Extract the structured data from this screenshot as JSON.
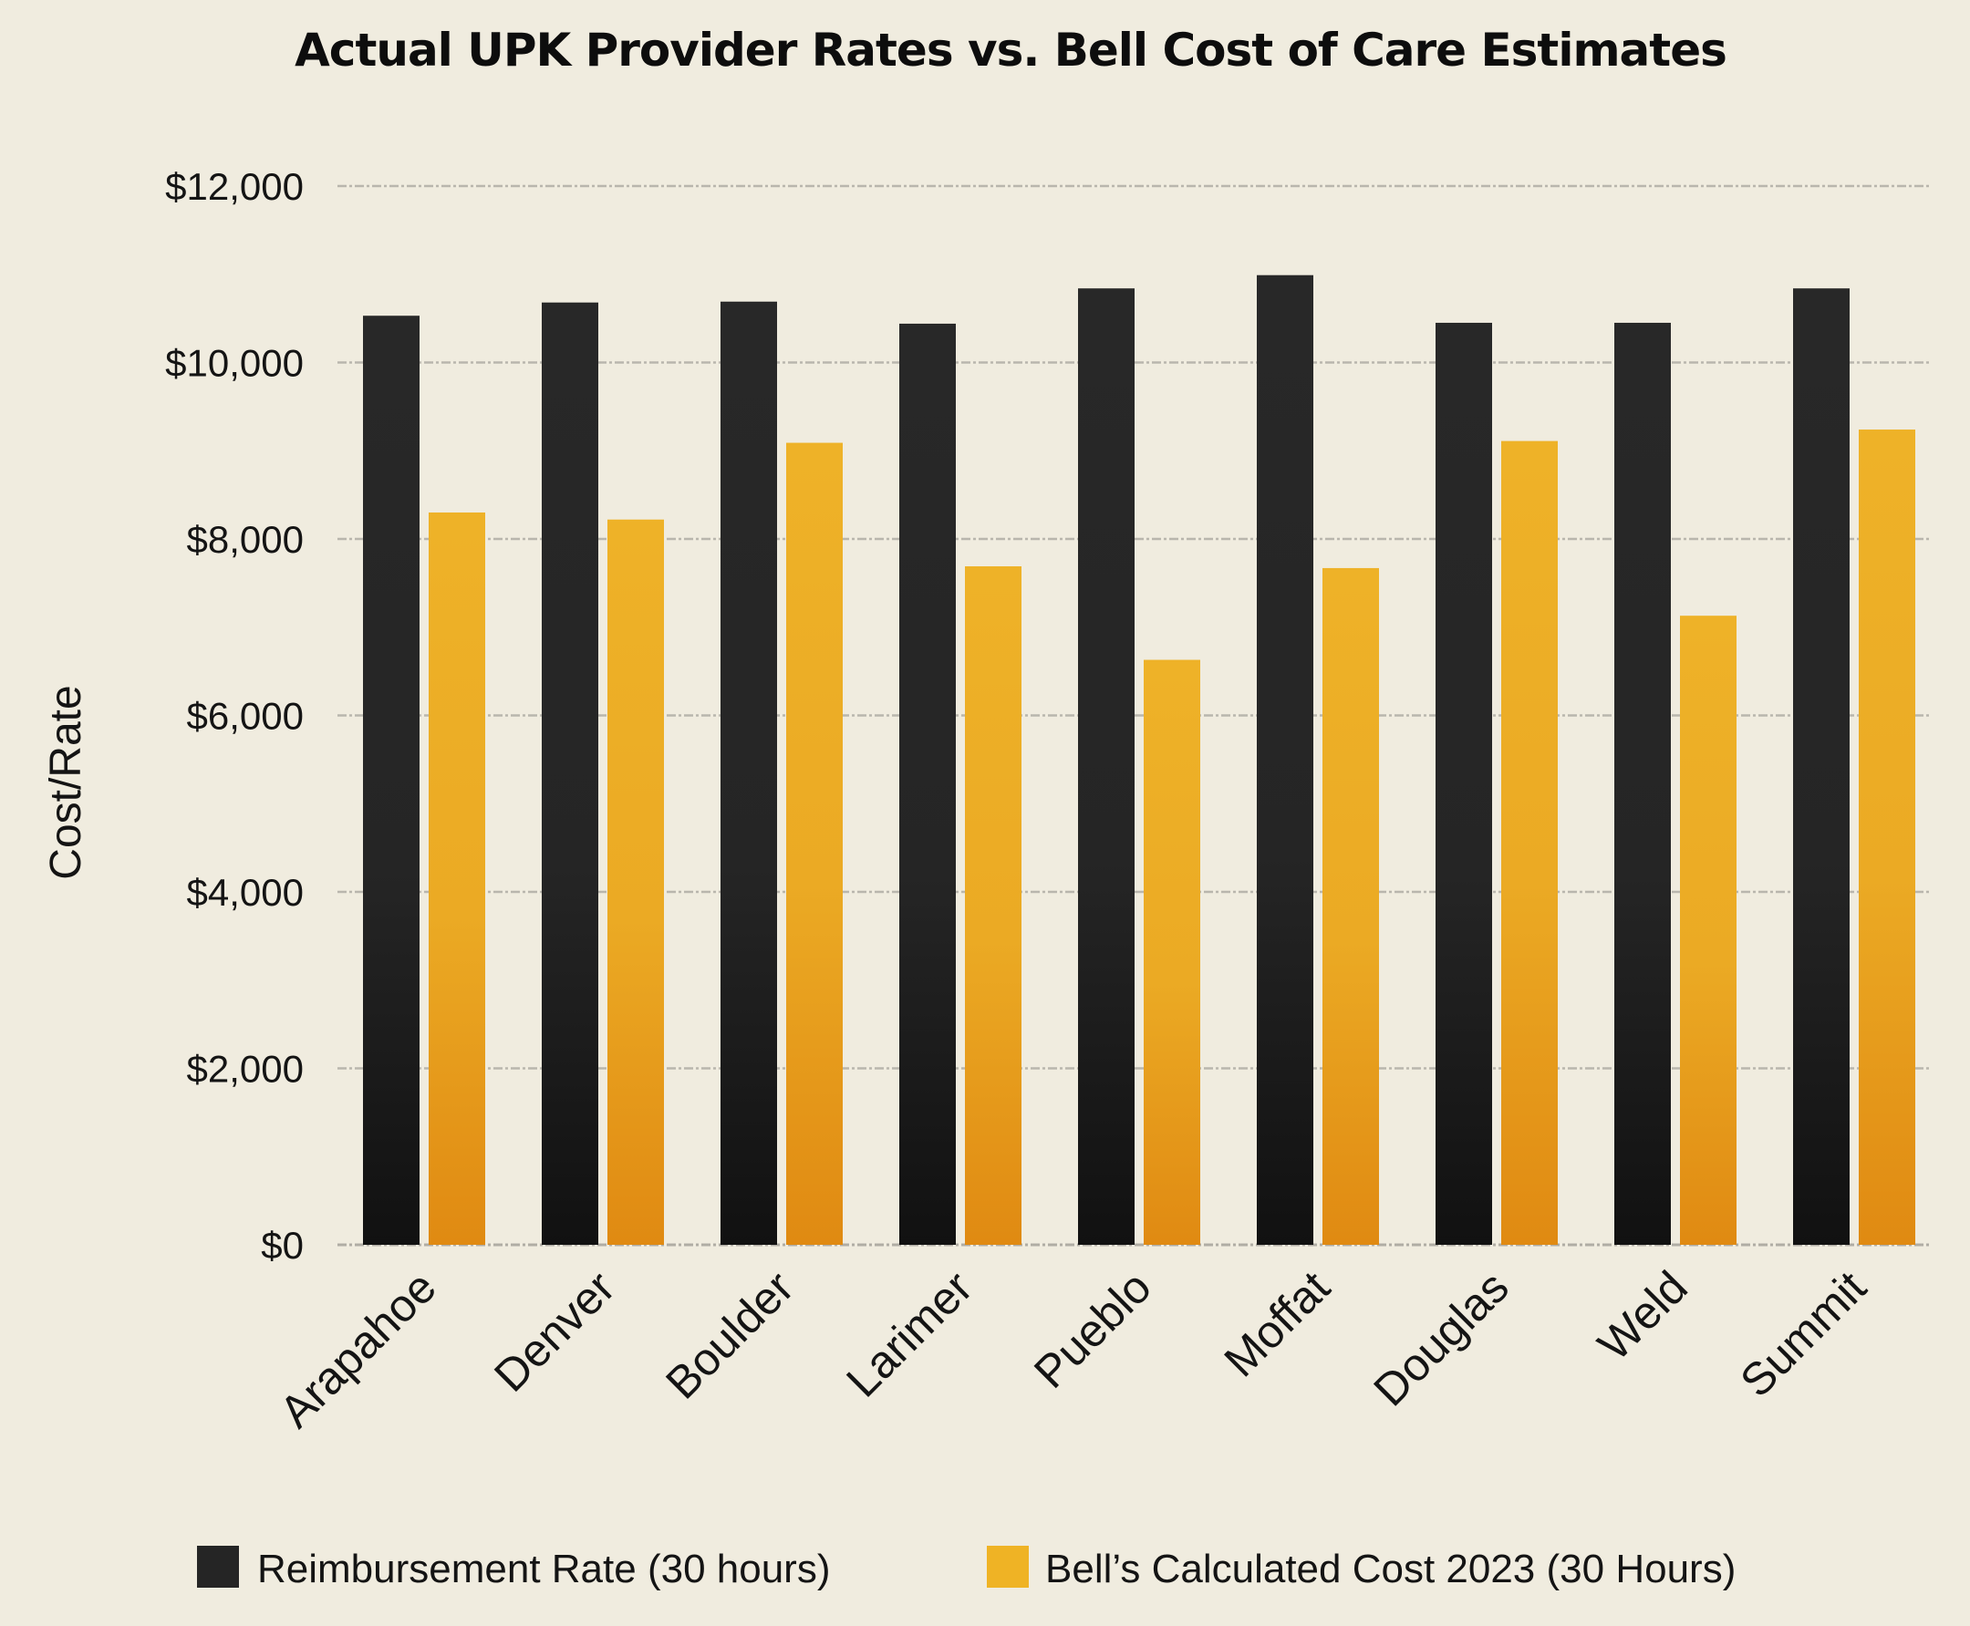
{
  "colors": {
    "background": "#f0ecdf",
    "series_1_top": "#282828",
    "series_1_bottom": "#111111",
    "series_2_top": "#eeb228",
    "series_2_bottom": "#e08a12",
    "legend_1": "#252525",
    "legend_2": "#efb325",
    "gridline": "#b9b6ad"
  },
  "chart_data": {
    "type": "bar",
    "title": "Actual UPK Provider Rates vs. Bell Cost of Care Estimates",
    "xlabel": "",
    "ylabel": "Cost/Rate",
    "ylim": [
      0,
      12000
    ],
    "yticks": [
      0,
      2000,
      4000,
      6000,
      8000,
      10000,
      12000
    ],
    "ytick_labels": [
      "$0",
      "$2,000",
      "$4,000",
      "$6,000",
      "$8,000",
      "$10,000",
      "$12,000"
    ],
    "grid": true,
    "legend_position": "bottom",
    "categories": [
      "Arapahoe",
      "Denver",
      "Boulder",
      "Larimer",
      "Pueblo",
      "Moffat",
      "Douglas",
      "Weld",
      "Summit"
    ],
    "series": [
      {
        "name": "Reimbursement Rate (30 hours)",
        "values": [
          10530,
          10680,
          10690,
          10440,
          10840,
          10990,
          10450,
          10450,
          10840
        ]
      },
      {
        "name": "Bell’s Calculated Cost 2023 (30 Hours)",
        "values": [
          8300,
          8220,
          9090,
          7690,
          6630,
          7670,
          9110,
          7130,
          9240
        ]
      }
    ]
  }
}
